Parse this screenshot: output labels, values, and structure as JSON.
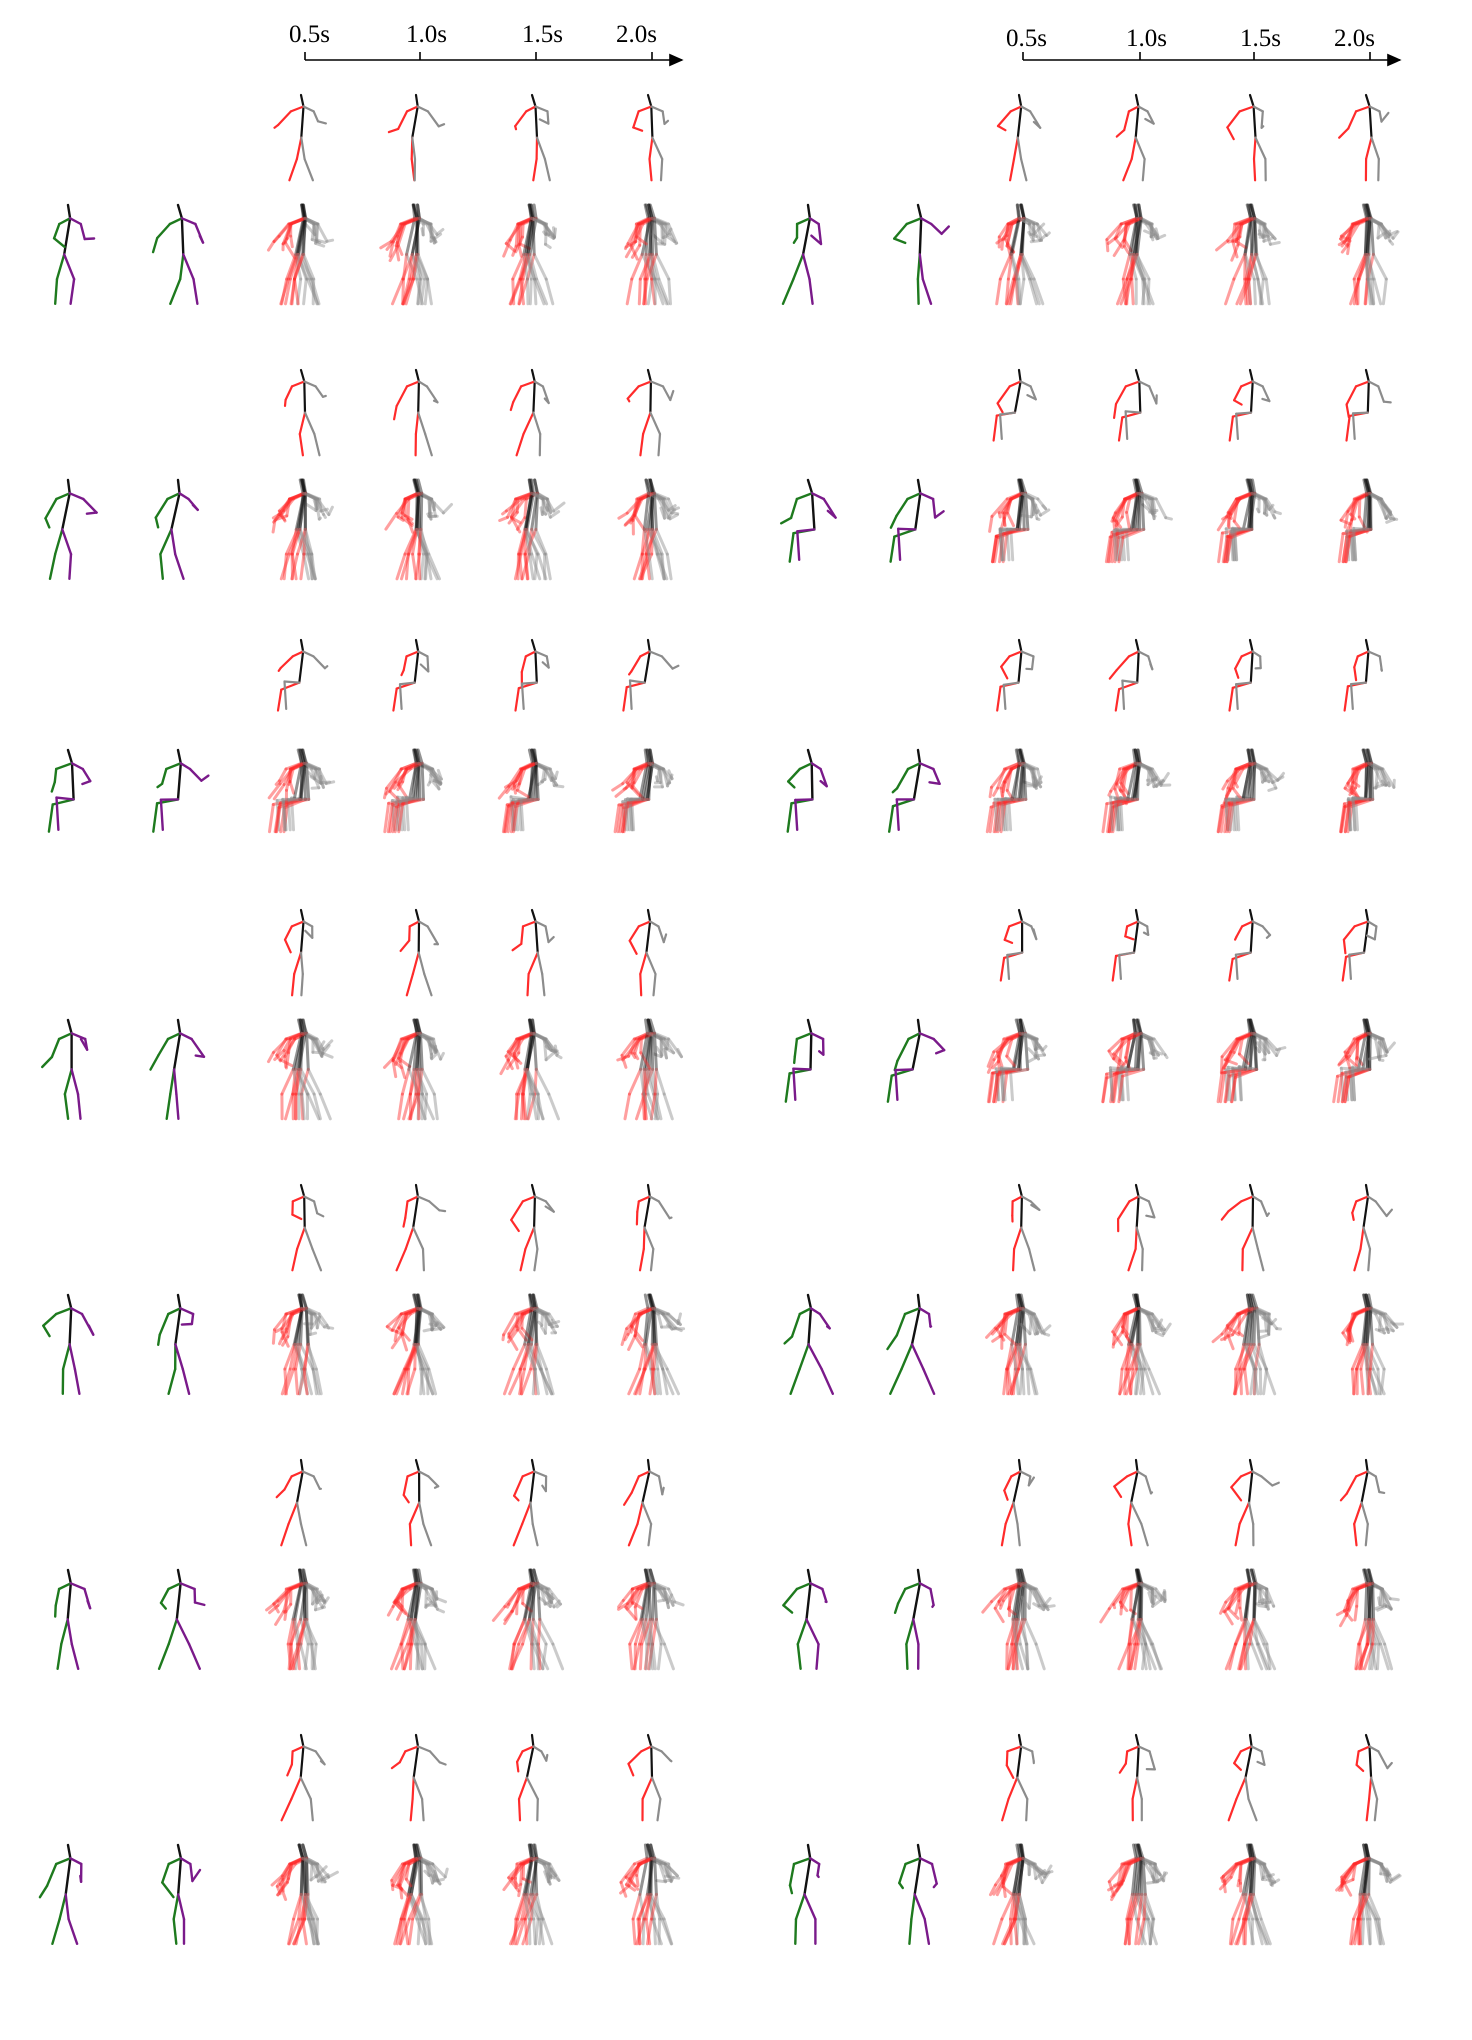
{
  "timelines": [
    {
      "ticks": [
        "0.5s",
        "1.0s",
        "1.5s",
        "2.0s"
      ]
    },
    {
      "ticks": [
        "0.5s",
        "1.0s",
        "1.5s",
        "2.0s"
      ]
    }
  ],
  "legend_colors": {
    "observed_left": "#1e7a1e",
    "observed_right": "#7a1a8a",
    "predicted_left": "#ff2b2b",
    "predicted_right": "#8c8c8c",
    "torso": "#111111"
  },
  "rows": 7,
  "columns": 2
}
